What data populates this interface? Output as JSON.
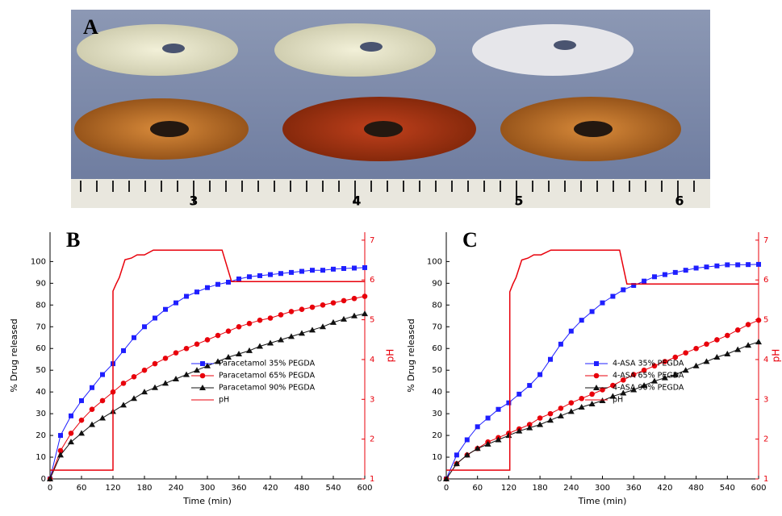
{
  "photo": {
    "label": "A",
    "ruler_labels": [
      "3",
      "4",
      "5",
      "6"
    ]
  },
  "chart_data": [
    {
      "type": "line",
      "panel_label": "B",
      "x_label": "Time (min)",
      "y_label": "% Drug released",
      "y2_label": "pH",
      "xlim": [
        0,
        600
      ],
      "xticks": [
        0,
        60,
        120,
        180,
        240,
        300,
        360,
        420,
        480,
        540,
        600
      ],
      "ylim": [
        0,
        113.5
      ],
      "yticks": [
        0,
        10,
        20,
        30,
        40,
        50,
        60,
        70,
        80,
        90,
        100
      ],
      "y2lim": [
        1,
        7.2
      ],
      "y2ticks": [
        1,
        2,
        3,
        4,
        5,
        6,
        7
      ],
      "grid": false,
      "legend": "center right",
      "x": [
        0,
        20,
        40,
        60,
        80,
        100,
        120,
        140,
        160,
        180,
        200,
        220,
        240,
        260,
        280,
        300,
        320,
        340,
        360,
        380,
        400,
        420,
        440,
        460,
        480,
        500,
        520,
        540,
        560,
        580,
        600
      ],
      "series": [
        {
          "name": "Paracetamol 35% PEGDA",
          "color": "#1f1fff",
          "marker": "square",
          "values": [
            0,
            20,
            29,
            36,
            42,
            48,
            53,
            59,
            65,
            70,
            74,
            78,
            81,
            84,
            86,
            88,
            89.5,
            90.5,
            92,
            93,
            93.5,
            94,
            94.5,
            95,
            95.5,
            96,
            96,
            96.5,
            96.8,
            97,
            97.2
          ]
        },
        {
          "name": "Paracetamol 65% PEGDA",
          "color": "#e8000b",
          "marker": "circle",
          "values": [
            0,
            13,
            21,
            27,
            32,
            36,
            40,
            44,
            47,
            50,
            53,
            55.5,
            58,
            60,
            62,
            64,
            66,
            68,
            70,
            71.5,
            73,
            74,
            75.5,
            77,
            78,
            79,
            80,
            81,
            82,
            83,
            84
          ]
        },
        {
          "name": "Paracetamol 90% PEGDA",
          "color": "#111111",
          "marker": "triangle",
          "values": [
            0,
            11,
            17,
            21,
            25,
            28,
            31,
            34,
            37,
            40,
            42,
            44,
            46,
            48,
            50,
            52,
            54,
            56,
            57.5,
            59,
            61,
            62.5,
            64,
            65.5,
            67,
            68.5,
            70,
            72,
            73.5,
            75,
            76
          ]
        },
        {
          "name": "pH",
          "color": "#e8000b",
          "marker": "none",
          "axis": "y2",
          "x": [
            0,
            120,
            120,
            126,
            132,
            143,
            155,
            166,
            180,
            197,
            328,
            346,
            600
          ],
          "values": [
            1.22,
            1.22,
            5.72,
            5.9,
            6.06,
            6.51,
            6.55,
            6.63,
            6.63,
            6.75,
            6.75,
            5.96,
            5.96
          ]
        }
      ]
    },
    {
      "type": "line",
      "panel_label": "C",
      "x_label": "Time (min)",
      "y_label": "% Drug released",
      "y2_label": "pH",
      "xlim": [
        0,
        600
      ],
      "xticks": [
        0,
        60,
        120,
        180,
        240,
        300,
        360,
        420,
        480,
        540,
        600
      ],
      "ylim": [
        0,
        113.5
      ],
      "yticks": [
        0,
        10,
        20,
        30,
        40,
        50,
        60,
        70,
        80,
        90,
        100
      ],
      "y2lim": [
        1,
        7.2
      ],
      "y2ticks": [
        1,
        2,
        3,
        4,
        5,
        6,
        7
      ],
      "grid": false,
      "legend": "center right",
      "x": [
        0,
        20,
        40,
        60,
        80,
        100,
        120,
        140,
        160,
        180,
        200,
        220,
        240,
        260,
        280,
        300,
        320,
        340,
        360,
        380,
        400,
        420,
        440,
        460,
        480,
        500,
        520,
        540,
        560,
        580,
        600
      ],
      "series": [
        {
          "name": "4-ASA 35% PEGDA",
          "color": "#1f1fff",
          "marker": "square",
          "values": [
            0,
            11,
            18,
            24,
            28,
            32,
            35,
            39,
            43,
            48,
            55,
            62,
            68,
            73,
            77,
            81,
            84,
            87,
            89,
            91,
            93,
            94,
            95,
            96,
            97,
            97.5,
            98,
            98.5,
            98.5,
            98.6,
            98.7
          ]
        },
        {
          "name": "4-ASA 65% PEGDA",
          "color": "#e8000b",
          "marker": "circle",
          "values": [
            0,
            7,
            11,
            14,
            17,
            19,
            21,
            23,
            25,
            28,
            30,
            32.5,
            35,
            37,
            39,
            41,
            43,
            45.5,
            48,
            50,
            52,
            54,
            56,
            58,
            60,
            62,
            64,
            66,
            68.5,
            71,
            73
          ]
        },
        {
          "name": "4-ASA 90% PEGDA",
          "color": "#111111",
          "marker": "triangle",
          "values": [
            0,
            7,
            11,
            14,
            16,
            18,
            20,
            22,
            23.5,
            25,
            27,
            29,
            31,
            33,
            34.5,
            36,
            38,
            39.5,
            41,
            43,
            45,
            46.5,
            48,
            50,
            52,
            54,
            56,
            57.5,
            59.5,
            61.5,
            63
          ]
        },
        {
          "name": "pH",
          "color": "#e8000b",
          "marker": "none",
          "axis": "y2",
          "x": [
            0,
            122,
            122,
            128,
            134,
            145,
            157,
            168,
            182,
            201,
            333,
            347,
            600
          ],
          "values": [
            1.22,
            1.22,
            5.7,
            5.9,
            6.06,
            6.5,
            6.55,
            6.63,
            6.63,
            6.75,
            6.75,
            5.9,
            5.9
          ]
        }
      ]
    }
  ]
}
